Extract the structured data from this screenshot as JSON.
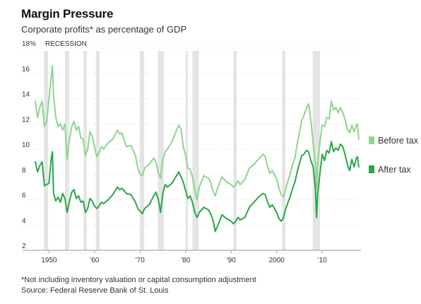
{
  "header": {
    "title": "Margin Pressure",
    "subtitle": "Corporate profits* as percentage of GDP"
  },
  "footer": {
    "note": "*Not including inventory valuation or capital consumption adjustment",
    "source": "Source: Federal Reserve Bank of St. Louis"
  },
  "chart_data": {
    "type": "line",
    "recession_label": "RECESSION",
    "xlim": [
      1947,
      2018.5
    ],
    "ylim": [
      2,
      18
    ],
    "y_ticks": [
      2,
      4,
      6,
      8,
      10,
      12,
      14,
      16,
      18
    ],
    "y_tick_labels": [
      "2",
      "4",
      "6",
      "8",
      "10",
      "12",
      "14",
      "16",
      "18%"
    ],
    "x_ticks": [
      1950,
      1960,
      1970,
      1980,
      1990,
      2000,
      2010
    ],
    "x_tick_labels": [
      "1950",
      "'60",
      "'70",
      "'80",
      "'90",
      "2000",
      "'10"
    ],
    "recessions": [
      [
        1948.9,
        1949.8
      ],
      [
        1953.5,
        1954.4
      ],
      [
        1957.6,
        1958.3
      ],
      [
        1960.3,
        1961.1
      ],
      [
        1969.9,
        1970.9
      ],
      [
        1973.9,
        1975.2
      ],
      [
        1980.0,
        1980.5
      ],
      [
        1981.5,
        1982.9
      ],
      [
        1990.5,
        1991.2
      ],
      [
        2001.2,
        2001.9
      ],
      [
        2007.9,
        2009.5
      ]
    ],
    "colors": {
      "before_tax": "#8ed48e",
      "after_tax": "#2aa64a",
      "recession": "#e4e4e4"
    },
    "series": [
      {
        "name": "Before tax",
        "x": [
          1947,
          1947.5,
          1948,
          1948.5,
          1949,
          1949.5,
          1950,
          1950.5,
          1950.75,
          1951,
          1951.5,
          1952,
          1952.5,
          1953,
          1953.5,
          1954,
          1954.5,
          1955,
          1955.5,
          1956,
          1956.5,
          1957,
          1957.5,
          1958,
          1958.5,
          1959,
          1959.5,
          1960,
          1960.5,
          1961,
          1961.5,
          1962,
          1963,
          1964,
          1965,
          1965.5,
          1966,
          1967,
          1968,
          1969,
          1969.5,
          1970,
          1970.5,
          1971,
          1972,
          1973,
          1973.5,
          1974,
          1974.5,
          1975,
          1975.5,
          1976,
          1977,
          1978,
          1978.5,
          1979,
          1979.5,
          1980,
          1980.5,
          1981,
          1981.5,
          1982,
          1982.5,
          1983,
          1984,
          1985,
          1985.5,
          1986,
          1986.5,
          1987,
          1988,
          1989,
          1990,
          1990.5,
          1991,
          1991.5,
          1992,
          1993,
          1994,
          1995,
          1996,
          1997,
          1997.5,
          1998,
          1998.5,
          1999,
          2000,
          2000.5,
          2001,
          2001.5,
          2002,
          2002.5,
          2003,
          2003.5,
          2004,
          2004.5,
          2005,
          2005.5,
          2006,
          2006.5,
          2007,
          2007.5,
          2008,
          2008.5,
          2008.75,
          2009,
          2009.5,
          2010,
          2010.5,
          2011,
          2011.5,
          2012,
          2012.5,
          2013,
          2013.5,
          2014,
          2014.5,
          2015,
          2015.5,
          2016,
          2016.5,
          2017,
          2017.5,
          2017.75,
          2018
        ],
        "values": [
          13.8,
          12.5,
          13.3,
          13.8,
          11.8,
          12.2,
          14.0,
          15.8,
          16.6,
          14.2,
          12.5,
          11.8,
          12.0,
          11.5,
          12.0,
          9.2,
          10.8,
          11.8,
          12.2,
          11.5,
          11.8,
          10.9,
          10.8,
          9.5,
          10.0,
          11.4,
          11.0,
          10.2,
          9.4,
          9.7,
          10.2,
          10.0,
          10.5,
          10.8,
          11.5,
          11.2,
          11.3,
          10.2,
          10.3,
          9.5,
          8.5,
          8.0,
          7.9,
          8.5,
          8.8,
          9.3,
          9.0,
          8.1,
          7.7,
          9.2,
          9.8,
          10.0,
          10.6,
          11.5,
          11.9,
          11.6,
          10.2,
          9.5,
          8.5,
          8.4,
          7.8,
          6.8,
          6.0,
          7.0,
          7.9,
          7.7,
          7.4,
          6.7,
          6.3,
          6.9,
          7.8,
          7.4,
          7.2,
          7.0,
          7.2,
          7.5,
          7.2,
          7.6,
          8.5,
          8.8,
          9.2,
          9.6,
          9.4,
          8.6,
          8.1,
          8.3,
          7.7,
          6.9,
          6.4,
          6.2,
          6.9,
          7.5,
          8.1,
          8.8,
          9.3,
          10.4,
          11.3,
          12.3,
          12.7,
          13.2,
          13.6,
          12.2,
          10.5,
          8.8,
          6.9,
          8.9,
          10.6,
          11.9,
          11.8,
          12.5,
          12.4,
          13.8,
          13.1,
          13.3,
          12.9,
          13.3,
          12.9,
          12.4,
          11.6,
          11.3,
          11.9,
          11.4,
          11.9,
          12.0,
          10.8
        ]
      },
      {
        "name": "After tax",
        "x": [
          1947,
          1947.5,
          1948,
          1948.5,
          1949,
          1949.5,
          1950,
          1950.5,
          1950.75,
          1951,
          1951.5,
          1952,
          1952.5,
          1953,
          1953.5,
          1954,
          1954.5,
          1955,
          1955.5,
          1956,
          1956.5,
          1957,
          1957.5,
          1958,
          1958.5,
          1959,
          1959.5,
          1960,
          1960.5,
          1961,
          1961.5,
          1962,
          1963,
          1964,
          1965,
          1965.5,
          1966,
          1967,
          1968,
          1969,
          1969.5,
          1970,
          1970.5,
          1971,
          1972,
          1973,
          1973.5,
          1974,
          1974.5,
          1975,
          1975.5,
          1976,
          1977,
          1978,
          1978.5,
          1979,
          1979.5,
          1980,
          1980.5,
          1981,
          1981.5,
          1982,
          1982.5,
          1983,
          1984,
          1985,
          1985.5,
          1986,
          1986.5,
          1987,
          1988,
          1989,
          1990,
          1990.5,
          1991,
          1991.5,
          1992,
          1993,
          1994,
          1995,
          1996,
          1997,
          1997.5,
          1998,
          1998.5,
          1999,
          2000,
          2000.5,
          2001,
          2001.5,
          2002,
          2002.5,
          2003,
          2003.5,
          2004,
          2004.5,
          2005,
          2005.5,
          2006,
          2006.5,
          2007,
          2007.5,
          2008,
          2008.5,
          2008.75,
          2009,
          2009.5,
          2010,
          2010.5,
          2011,
          2011.5,
          2012,
          2012.5,
          2013,
          2013.5,
          2014,
          2014.5,
          2015,
          2015.5,
          2016,
          2016.5,
          2017,
          2017.5,
          2017.75,
          2018
        ],
        "values": [
          9.0,
          8.2,
          8.7,
          9.0,
          7.1,
          7.2,
          7.3,
          9.3,
          9.8,
          6.5,
          5.9,
          6.2,
          5.8,
          6.5,
          6.1,
          5.0,
          5.9,
          6.6,
          6.8,
          6.1,
          6.3,
          5.8,
          5.9,
          5.0,
          5.3,
          6.1,
          5.9,
          5.5,
          5.3,
          5.5,
          5.8,
          5.7,
          6.0,
          6.4,
          7.0,
          6.8,
          6.9,
          6.5,
          6.4,
          5.8,
          5.3,
          5.1,
          4.9,
          5.3,
          5.6,
          6.3,
          6.6,
          6.0,
          5.0,
          6.5,
          7.2,
          7.0,
          7.3,
          7.9,
          8.2,
          7.8,
          7.4,
          6.7,
          6.1,
          6.3,
          5.8,
          5.0,
          4.6,
          5.0,
          5.4,
          5.2,
          4.9,
          4.4,
          3.5,
          3.9,
          4.8,
          4.5,
          4.3,
          4.1,
          4.3,
          4.6,
          4.4,
          4.6,
          5.4,
          5.8,
          6.2,
          6.5,
          6.4,
          5.8,
          5.4,
          5.6,
          5.0,
          4.5,
          4.3,
          4.6,
          5.3,
          5.8,
          6.3,
          6.9,
          7.4,
          8.2,
          8.9,
          9.5,
          9.6,
          9.9,
          9.8,
          9.1,
          8.6,
          6.9,
          4.6,
          6.5,
          8.1,
          9.6,
          9.1,
          9.9,
          9.7,
          10.6,
          9.8,
          10.1,
          9.9,
          10.4,
          10.2,
          9.6,
          8.8,
          8.3,
          9.2,
          8.6,
          9.3,
          9.4,
          8.6
        ]
      }
    ]
  }
}
